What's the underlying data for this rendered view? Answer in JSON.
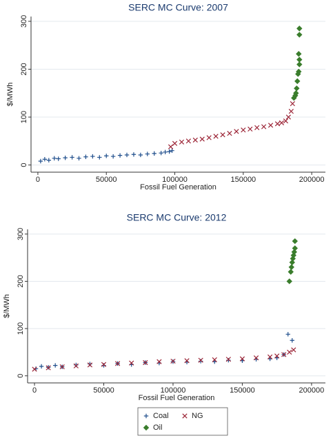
{
  "chart_data": [
    {
      "type": "scatter",
      "title": "SERC MC Curve: 2007",
      "x_label": "Fossil Fuel Generation",
      "y_label": "$/MWh",
      "xlim": [
        -5000,
        210000
      ],
      "ylim": [
        -15,
        310
      ],
      "xticks": [
        0,
        50000,
        100000,
        150000,
        200000
      ],
      "yticks": [
        0,
        100,
        200,
        300
      ],
      "grid": true,
      "series": [
        {
          "name": "Coal",
          "color": "#1f4e8c",
          "marker": "plus",
          "x": [
            2000,
            5000,
            8000,
            12000,
            15000,
            20000,
            25000,
            30000,
            35000,
            40000,
            45000,
            50000,
            55000,
            60000,
            65000,
            70000,
            75000,
            80000,
            85000,
            90000,
            93000,
            96000,
            98000
          ],
          "values": [
            8,
            12,
            10,
            14,
            13,
            15,
            16,
            14,
            17,
            18,
            16,
            19,
            18,
            20,
            21,
            22,
            21,
            23,
            24,
            25,
            27,
            28,
            30
          ]
        },
        {
          "name": "NG",
          "color": "#9b2335",
          "marker": "x",
          "x": [
            97000,
            100000,
            105000,
            110000,
            115000,
            120000,
            125000,
            130000,
            135000,
            140000,
            145000,
            150000,
            155000,
            160000,
            165000,
            170000,
            175000,
            178000,
            181000,
            183000,
            185000,
            186000
          ],
          "values": [
            38,
            45,
            48,
            50,
            52,
            54,
            57,
            60,
            63,
            66,
            70,
            73,
            75,
            78,
            80,
            83,
            86,
            88,
            92,
            100,
            112,
            128
          ]
        },
        {
          "name": "Oil",
          "color": "#3a7d2c",
          "marker": "diamond",
          "x": [
            187000,
            188000,
            188500,
            189000,
            189500,
            190000,
            190500,
            191000,
            191000,
            190500,
            191000,
            191000
          ],
          "values": [
            140,
            145,
            150,
            160,
            175,
            190,
            195,
            210,
            220,
            232,
            272,
            285
          ]
        }
      ]
    },
    {
      "type": "scatter",
      "title": "SERC MC Curve: 2012",
      "x_label": "Fossil Fuel Generation",
      "y_label": "$/MWh",
      "xlim": [
        -5000,
        210000
      ],
      "ylim": [
        -15,
        310
      ],
      "xticks": [
        0,
        50000,
        100000,
        150000,
        200000
      ],
      "yticks": [
        0,
        100,
        200,
        300
      ],
      "grid": true,
      "series": [
        {
          "name": "Coal",
          "color": "#1f4e8c",
          "marker": "plus",
          "x": [
            1000,
            5000,
            10000,
            15000,
            20000,
            30000,
            40000,
            50000,
            60000,
            70000,
            80000,
            90000,
            100000,
            110000,
            120000,
            130000,
            140000,
            150000,
            160000,
            170000,
            175000,
            180000,
            183000,
            186000
          ],
          "values": [
            15,
            20,
            18,
            22,
            19,
            23,
            25,
            22,
            26,
            24,
            28,
            27,
            30,
            29,
            31,
            30,
            33,
            32,
            35,
            36,
            38,
            45,
            88,
            75
          ]
        },
        {
          "name": "NG",
          "color": "#9b2335",
          "marker": "x",
          "x": [
            0,
            10000,
            20000,
            30000,
            40000,
            50000,
            60000,
            70000,
            80000,
            90000,
            100000,
            110000,
            120000,
            130000,
            140000,
            150000,
            160000,
            170000,
            175000,
            180000,
            184000,
            187000
          ],
          "values": [
            14,
            17,
            19,
            21,
            23,
            24,
            26,
            27,
            28,
            30,
            31,
            32,
            33,
            34,
            35,
            36,
            38,
            40,
            42,
            45,
            50,
            55
          ]
        },
        {
          "name": "Oil",
          "color": "#3a7d2c",
          "marker": "diamond",
          "x": [
            184000,
            185000,
            185500,
            186000,
            186500,
            187000,
            187500,
            188000,
            188000
          ],
          "values": [
            200,
            220,
            230,
            240,
            248,
            255,
            262,
            270,
            285
          ]
        }
      ]
    }
  ]
}
